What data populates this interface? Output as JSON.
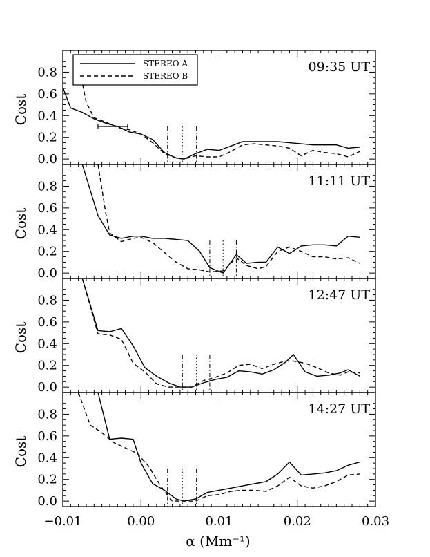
{
  "chart_data": {
    "type": "line",
    "xlabel": "α   (Mm⁻¹)",
    "ylabel": "Cost",
    "xlim": [
      -0.01,
      0.03
    ],
    "ylim": [
      -0.05,
      1.0
    ],
    "xticks": [
      "−0.01",
      "0.00",
      "0.01",
      "0.02",
      "0.03"
    ],
    "yticks": [
      "0.0",
      "0.2",
      "0.4",
      "0.6",
      "0.8"
    ],
    "legend": {
      "placement": "top-left",
      "entries": [
        "STEREO A",
        "STEREO B"
      ]
    },
    "series_styles": {
      "STEREO A": "solid",
      "STEREO B": "dashed"
    },
    "panels": [
      {
        "time": "09:35 UT",
        "series": [
          {
            "name": "STEREO A",
            "x": [
              -0.01,
              -0.009,
              -0.0075,
              -0.006,
              -0.0045,
              -0.003,
              -0.0015,
              0.0,
              0.0015,
              0.003,
              0.0045,
              0.0055,
              0.007,
              0.0085,
              0.01,
              0.0115,
              0.013,
              0.0145,
              0.016,
              0.0175,
              0.019,
              0.0205,
              0.022,
              0.0235,
              0.025,
              0.0265,
              0.028
            ],
            "y": [
              0.66,
              0.47,
              0.43,
              0.37,
              0.33,
              0.3,
              0.25,
              0.23,
              0.18,
              0.06,
              0.01,
              0.0,
              0.05,
              0.09,
              0.08,
              0.12,
              0.16,
              0.16,
              0.16,
              0.16,
              0.15,
              0.14,
              0.13,
              0.13,
              0.13,
              0.1,
              0.11
            ]
          },
          {
            "name": "STEREO B",
            "x": [
              -0.008,
              -0.0075,
              -0.007,
              -0.006,
              -0.0045,
              -0.003,
              -0.0015,
              0.0,
              0.0015,
              0.003,
              0.0045,
              0.0055,
              0.007,
              0.0085,
              0.01,
              0.0115,
              0.013,
              0.0145,
              0.016,
              0.0175,
              0.019,
              0.0205,
              0.022,
              0.0235,
              0.025,
              0.0265,
              0.028
            ],
            "y": [
              1.0,
              0.7,
              0.52,
              0.38,
              0.34,
              0.29,
              0.27,
              0.23,
              0.15,
              0.05,
              0.01,
              0.0,
              0.03,
              0.02,
              0.02,
              0.07,
              0.13,
              0.14,
              0.13,
              0.12,
              0.1,
              0.03,
              0.08,
              0.06,
              0.05,
              0.02,
              0.07
            ]
          }
        ],
        "vlines_dashdot": [
          0.0034,
          0.0071
        ],
        "vline_dotted": 0.0053,
        "error_bar": {
          "y": 0.3,
          "x_from": -0.0055,
          "x_to": -0.0017
        }
      },
      {
        "time": "11:11 UT",
        "series": [
          {
            "name": "STEREO A",
            "x": [
              -0.0075,
              -0.0055,
              -0.004,
              -0.0025,
              -0.001,
              0.0,
              0.0015,
              0.003,
              0.0045,
              0.006,
              0.0075,
              0.0088,
              0.0105,
              0.0122,
              0.0135,
              0.015,
              0.016,
              0.0175,
              0.019,
              0.0205,
              0.022,
              0.0235,
              0.025,
              0.0265,
              0.028
            ],
            "y": [
              1.0,
              0.53,
              0.35,
              0.32,
              0.34,
              0.34,
              0.32,
              0.32,
              0.31,
              0.3,
              0.2,
              0.05,
              0.0,
              0.17,
              0.09,
              0.1,
              0.1,
              0.24,
              0.18,
              0.25,
              0.26,
              0.26,
              0.25,
              0.34,
              0.33
            ]
          },
          {
            "name": "STEREO B",
            "x": [
              -0.0055,
              -0.0045,
              -0.004,
              -0.0025,
              -0.001,
              0.0,
              0.0015,
              0.003,
              0.0045,
              0.006,
              0.0075,
              0.0088,
              0.0105,
              0.0122,
              0.0135,
              0.015,
              0.016,
              0.0175,
              0.019,
              0.0205,
              0.022,
              0.0235,
              0.025,
              0.0265,
              0.028
            ],
            "y": [
              1.0,
              0.55,
              0.37,
              0.29,
              0.32,
              0.33,
              0.28,
              0.19,
              0.1,
              0.04,
              0.03,
              0.01,
              0.02,
              0.14,
              0.07,
              0.04,
              0.06,
              0.2,
              0.24,
              0.2,
              0.15,
              0.15,
              0.13,
              0.14,
              0.09
            ]
          }
        ],
        "vlines_dashdot": [
          0.0088,
          0.0122
        ],
        "vline_dotted": 0.0105
      },
      {
        "time": "12:47 UT",
        "series": [
          {
            "name": "STEREO A",
            "x": [
              -0.0075,
              -0.0055,
              -0.004,
              -0.0025,
              -0.001,
              0.0005,
              0.002,
              0.0035,
              0.005,
              0.0065,
              0.008,
              0.0095,
              0.011,
              0.0125,
              0.014,
              0.0155,
              0.017,
              0.0185,
              0.0195,
              0.021,
              0.0225,
              0.024,
              0.0255,
              0.0265,
              0.028
            ],
            "y": [
              1.0,
              0.52,
              0.51,
              0.54,
              0.38,
              0.18,
              0.1,
              0.04,
              0.0,
              0.0,
              0.04,
              0.07,
              0.09,
              0.15,
              0.14,
              0.12,
              0.16,
              0.23,
              0.3,
              0.14,
              0.1,
              0.11,
              0.13,
              0.16,
              0.1
            ]
          },
          {
            "name": "STEREO B",
            "x": [
              -0.0075,
              -0.0055,
              -0.004,
              -0.0025,
              -0.001,
              0.0005,
              0.002,
              0.0035,
              0.005,
              0.0065,
              0.008,
              0.0095,
              0.011,
              0.0125,
              0.014,
              0.0155,
              0.017,
              0.0185,
              0.0195,
              0.021,
              0.0225,
              0.024,
              0.0255,
              0.0265,
              0.028
            ],
            "y": [
              1.0,
              0.49,
              0.48,
              0.44,
              0.22,
              0.14,
              0.03,
              0.0,
              0.0,
              0.0,
              0.06,
              0.09,
              0.13,
              0.2,
              0.21,
              0.17,
              0.21,
              0.24,
              0.24,
              0.22,
              0.18,
              0.13,
              0.11,
              0.14,
              0.13
            ]
          }
        ],
        "vlines_dashdot": [
          0.0053,
          0.0088
        ],
        "vline_dotted": 0.0071
      },
      {
        "time": "14:27 UT",
        "series": [
          {
            "name": "STEREO A",
            "x": [
              -0.0055,
              -0.004,
              -0.0025,
              -0.001,
              0.0,
              0.0015,
              0.003,
              0.0045,
              0.0055,
              0.007,
              0.0085,
              0.01,
              0.0115,
              0.013,
              0.0145,
              0.016,
              0.0175,
              0.019,
              0.0205,
              0.022,
              0.0235,
              0.025,
              0.0265,
              0.028
            ],
            "y": [
              1.0,
              0.57,
              0.58,
              0.57,
              0.35,
              0.16,
              0.1,
              0.02,
              0.0,
              0.02,
              0.08,
              0.1,
              0.12,
              0.14,
              0.16,
              0.18,
              0.25,
              0.36,
              0.24,
              0.25,
              0.26,
              0.28,
              0.33,
              0.36
            ]
          },
          {
            "name": "STEREO B",
            "x": [
              -0.008,
              -0.0065,
              -0.005,
              -0.0035,
              -0.002,
              -0.0005,
              0.001,
              0.0025,
              0.004,
              0.0055,
              0.007,
              0.0085,
              0.01,
              0.0115,
              0.013,
              0.0145,
              0.016,
              0.0175,
              0.019,
              0.0205,
              0.022,
              0.0235,
              0.025,
              0.0265,
              0.028
            ],
            "y": [
              1.0,
              0.7,
              0.63,
              0.54,
              0.49,
              0.44,
              0.32,
              0.14,
              0.0,
              0.0,
              0.0,
              0.05,
              0.06,
              0.09,
              0.1,
              0.1,
              0.09,
              0.14,
              0.22,
              0.14,
              0.12,
              0.14,
              0.18,
              0.24,
              0.25
            ]
          }
        ],
        "vlines_dashdot": [
          0.0034,
          0.0071
        ],
        "vline_dotted": 0.0053
      }
    ]
  }
}
